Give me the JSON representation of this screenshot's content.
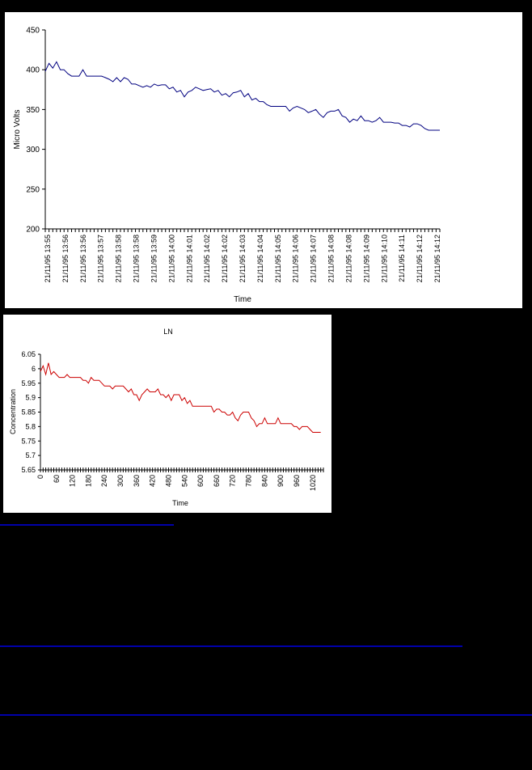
{
  "colors": {
    "background": "#000000",
    "panel": "#ffffff",
    "chart1_line": "#000080",
    "chart2_line": "#cc0000",
    "rule": "#0000aa"
  },
  "chart_data": [
    {
      "type": "line",
      "title": "",
      "xlabel": "Time",
      "ylabel": "Micro Volts",
      "ylim": [
        200,
        450
      ],
      "yticks": [
        200,
        250,
        300,
        350,
        400,
        450
      ],
      "grid": false,
      "legend": "none",
      "tick_labels": [
        "21/11/95 13:55",
        "21/11/95 13:56",
        "21/11/95 13:56",
        "21/11/95 13:57",
        "21/11/95 13:58",
        "21/11/95 13:58",
        "21/11/95 13:59",
        "21/11/95 14:00",
        "21/11/95 14:01",
        "21/11/95 14:02",
        "21/11/95 14:02",
        "21/11/95 14:03",
        "21/11/95 14:04",
        "21/11/95 14:05",
        "21/11/95 14:06",
        "21/11/95 14:07",
        "21/11/95 14:08",
        "21/11/95 14:08",
        "21/11/95 14:09",
        "21/11/95 14:10",
        "21/11/95 14:11",
        "21/11/95 14:12",
        "21/11/95 14:12"
      ],
      "series": [
        {
          "x": [
            0,
            10,
            20,
            30,
            40,
            50,
            60,
            70,
            80,
            90,
            100,
            110,
            120,
            130,
            140,
            150,
            160,
            170,
            180,
            190,
            200,
            210,
            220,
            230,
            240,
            250,
            260,
            270,
            280,
            290,
            300,
            310,
            320,
            330,
            340,
            350,
            360,
            370,
            380,
            390,
            400,
            410,
            420,
            430,
            440,
            450,
            460,
            470,
            480,
            490,
            500,
            510,
            520,
            530,
            540,
            550,
            560,
            570,
            580,
            590,
            600,
            610,
            620,
            630,
            640,
            650,
            660,
            670,
            680,
            690,
            700,
            710,
            720,
            730,
            740,
            750,
            760,
            770,
            780,
            790,
            800,
            810,
            820,
            830,
            840,
            850,
            860,
            870,
            880,
            890,
            900,
            910,
            920,
            930,
            940,
            950,
            960,
            970,
            980,
            990,
            1000,
            1010,
            1020,
            1030,
            1040,
            1050
          ],
          "values": [
            398,
            408,
            402,
            410,
            400,
            400,
            395,
            392,
            392,
            392,
            400,
            392,
            392,
            392,
            392,
            392,
            390,
            388,
            385,
            390,
            385,
            390,
            388,
            382,
            382,
            380,
            378,
            380,
            378,
            382,
            380,
            381,
            381,
            376,
            378,
            372,
            374,
            366,
            372,
            374,
            378,
            376,
            374,
            375,
            376,
            372,
            374,
            368,
            370,
            366,
            371,
            372,
            374,
            366,
            370,
            362,
            364,
            360,
            360,
            356,
            354,
            354,
            354,
            354,
            354,
            348,
            352,
            354,
            352,
            350,
            346,
            348,
            350,
            344,
            340,
            346,
            348,
            348,
            350,
            342,
            340,
            334,
            338,
            336,
            342,
            336,
            336,
            334,
            336,
            340,
            334,
            334,
            334,
            333,
            333,
            330,
            330,
            328,
            332,
            332,
            330,
            326,
            324,
            324,
            324,
            324
          ]
        }
      ]
    },
    {
      "type": "line",
      "title": "LN",
      "xlabel": "Time",
      "ylabel": "Concentration",
      "ylim": [
        5.65,
        6.05
      ],
      "yticks": [
        "5.65",
        "5.7",
        "5.75",
        "5.8",
        "5.85",
        "5.9",
        "5.95",
        "6",
        "6.05"
      ],
      "xlim": [
        0,
        1060
      ],
      "xticks": [
        0,
        60,
        120,
        180,
        240,
        300,
        360,
        420,
        480,
        540,
        600,
        660,
        720,
        780,
        840,
        900,
        960,
        1020
      ],
      "grid": false,
      "legend": "none",
      "series": [
        {
          "x": [
            0,
            10,
            20,
            30,
            40,
            50,
            60,
            70,
            80,
            90,
            100,
            110,
            120,
            130,
            140,
            150,
            160,
            170,
            180,
            190,
            200,
            210,
            220,
            230,
            240,
            250,
            260,
            270,
            280,
            290,
            300,
            310,
            320,
            330,
            340,
            350,
            360,
            370,
            380,
            390,
            400,
            410,
            420,
            430,
            440,
            450,
            460,
            470,
            480,
            490,
            500,
            510,
            520,
            530,
            540,
            550,
            560,
            570,
            580,
            590,
            600,
            610,
            620,
            630,
            640,
            650,
            660,
            670,
            680,
            690,
            700,
            710,
            720,
            730,
            740,
            750,
            760,
            770,
            780,
            790,
            800,
            810,
            820,
            830,
            840,
            850,
            860,
            870,
            880,
            890,
            900,
            910,
            920,
            930,
            940,
            950,
            960,
            970,
            980,
            990,
            1000,
            1010,
            1020,
            1030,
            1040,
            1050
          ],
          "values": [
            5.99,
            6.01,
            5.98,
            6.02,
            5.98,
            5.99,
            5.98,
            5.97,
            5.97,
            5.97,
            5.98,
            5.97,
            5.97,
            5.97,
            5.97,
            5.97,
            5.96,
            5.96,
            5.95,
            5.97,
            5.96,
            5.96,
            5.96,
            5.95,
            5.94,
            5.94,
            5.94,
            5.93,
            5.94,
            5.94,
            5.94,
            5.94,
            5.93,
            5.92,
            5.93,
            5.91,
            5.91,
            5.89,
            5.91,
            5.92,
            5.93,
            5.92,
            5.92,
            5.92,
            5.93,
            5.91,
            5.91,
            5.9,
            5.91,
            5.89,
            5.91,
            5.91,
            5.91,
            5.89,
            5.9,
            5.88,
            5.89,
            5.87,
            5.87,
            5.87,
            5.87,
            5.87,
            5.87,
            5.87,
            5.87,
            5.85,
            5.86,
            5.86,
            5.85,
            5.85,
            5.84,
            5.84,
            5.85,
            5.83,
            5.82,
            5.84,
            5.85,
            5.85,
            5.85,
            5.83,
            5.82,
            5.8,
            5.81,
            5.81,
            5.83,
            5.81,
            5.81,
            5.81,
            5.81,
            5.83,
            5.81,
            5.81,
            5.81,
            5.81,
            5.81,
            5.8,
            5.8,
            5.79,
            5.8,
            5.8,
            5.8,
            5.79,
            5.78,
            5.78,
            5.78,
            5.78
          ]
        }
      ]
    }
  ]
}
